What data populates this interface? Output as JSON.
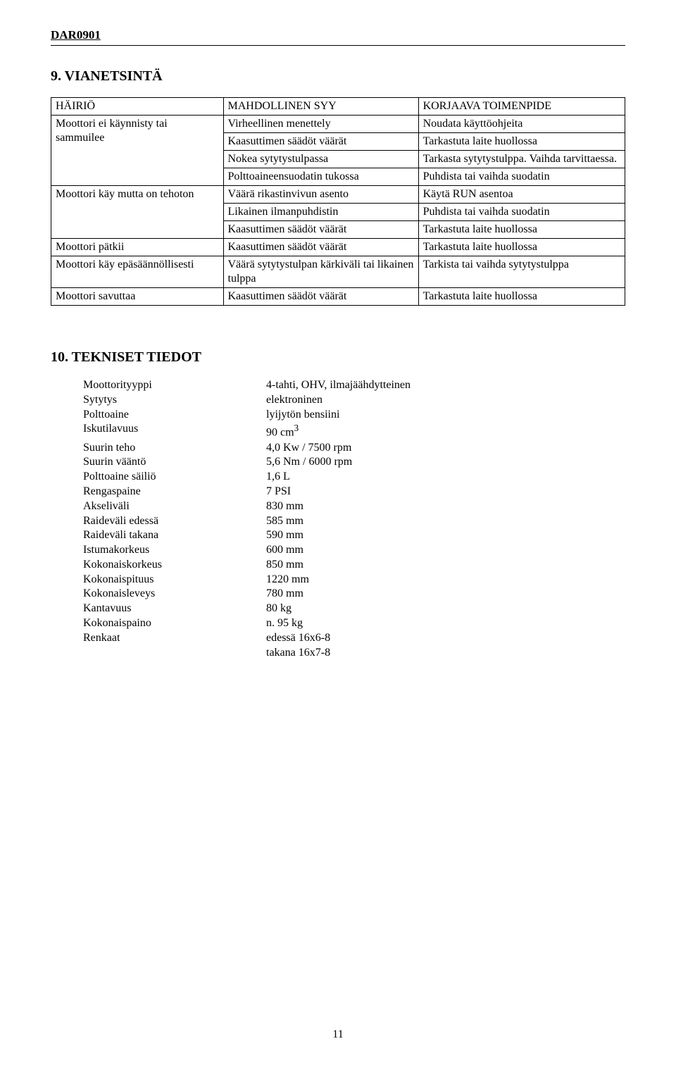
{
  "header_code": "DAR0901",
  "section9": {
    "heading": "9. VIANETSINTÄ",
    "table": {
      "col_widths_pct": [
        30,
        34,
        36
      ],
      "head": [
        "HÄIRIÖ",
        "MAHDOLLINEN SYY",
        "KORJAAVA TOIMENPIDE"
      ],
      "body": [
        [
          {
            "text": "Moottori ei käynnisty tai sammuilee",
            "rowspan": 4
          },
          {
            "text": "Virheellinen menettely"
          },
          {
            "text": "Noudata käyttöohjeita"
          }
        ],
        [
          {
            "text": "Kaasuttimen säädöt väärät"
          },
          {
            "text": "Tarkastuta laite huollossa"
          }
        ],
        [
          {
            "text": "Nokea sytytystulpassa"
          },
          {
            "text": "Tarkasta sytytystulppa. Vaihda tarvittaessa."
          }
        ],
        [
          {
            "text": "Polttoaineensuodatin tukossa"
          },
          {
            "text": "Puhdista tai vaihda suodatin"
          }
        ],
        [
          {
            "text": "Moottori käy mutta on tehoton",
            "rowspan": 3
          },
          {
            "text": "Väärä rikastinvivun asento"
          },
          {
            "text": "Käytä RUN asentoa"
          }
        ],
        [
          {
            "text": "Likainen ilmanpuhdistin"
          },
          {
            "text": "Puhdista tai vaihda suodatin"
          }
        ],
        [
          {
            "text": "Kaasuttimen säädöt väärät"
          },
          {
            "text": "Tarkastuta laite huollossa"
          }
        ],
        [
          {
            "text": "Moottori pätkii"
          },
          {
            "text": "Kaasuttimen säädöt väärät"
          },
          {
            "text": "Tarkastuta laite huollossa"
          }
        ],
        [
          {
            "text": "Moottori käy epäsäännöllisesti"
          },
          {
            "text": "Väärä sytytystulpan kärkiväli tai likainen tulppa"
          },
          {
            "text": "Tarkista tai vaihda sytytystulppa"
          }
        ],
        [
          {
            "text": "Moottori savuttaa"
          },
          {
            "text": "Kaasuttimen säädöt väärät"
          },
          {
            "text": "Tarkastuta laite huollossa"
          }
        ]
      ]
    }
  },
  "section10": {
    "heading": "10. TEKNISET TIEDOT",
    "specs": [
      {
        "label": "Moottorityyppi",
        "value": "4-tahti, OHV, ilmajäähdytteinen"
      },
      {
        "label": "Sytytys",
        "value": "elektroninen"
      },
      {
        "label": "Polttoaine",
        "value": "lyijytön bensiini"
      },
      {
        "label": "Iskutilavuus",
        "value_html": "90 cm<sup>3</sup>"
      },
      {
        "label": "Suurin teho",
        "value": "4,0 Kw / 7500 rpm"
      },
      {
        "label": "Suurin vääntö",
        "value": "5,6 Nm / 6000 rpm"
      },
      {
        "label": "Polttoaine säiliö",
        "value": "1,6 L"
      },
      {
        "label": "Rengaspaine",
        "value": "7 PSI"
      },
      {
        "label": "Akseliväli",
        "value": "830 mm"
      },
      {
        "label": "Raideväli edessä",
        "value": "585 mm"
      },
      {
        "label": "Raideväli takana",
        "value": "590 mm"
      },
      {
        "label": "Istumakorkeus",
        "value": "600 mm"
      },
      {
        "label": "Kokonaiskorkeus",
        "value": "850 mm"
      },
      {
        "label": "Kokonaispituus",
        "value": "1220 mm"
      },
      {
        "label": "Kokonaisleveys",
        "value": "780 mm"
      },
      {
        "label": "Kantavuus",
        "value": "80 kg"
      },
      {
        "label": "Kokonaispaino",
        "value": "n. 95 kg"
      },
      {
        "label": "Renkaat",
        "value_html": "edessä  16x6-8<br>takana  16x7-8"
      }
    ]
  },
  "page_number": "11"
}
